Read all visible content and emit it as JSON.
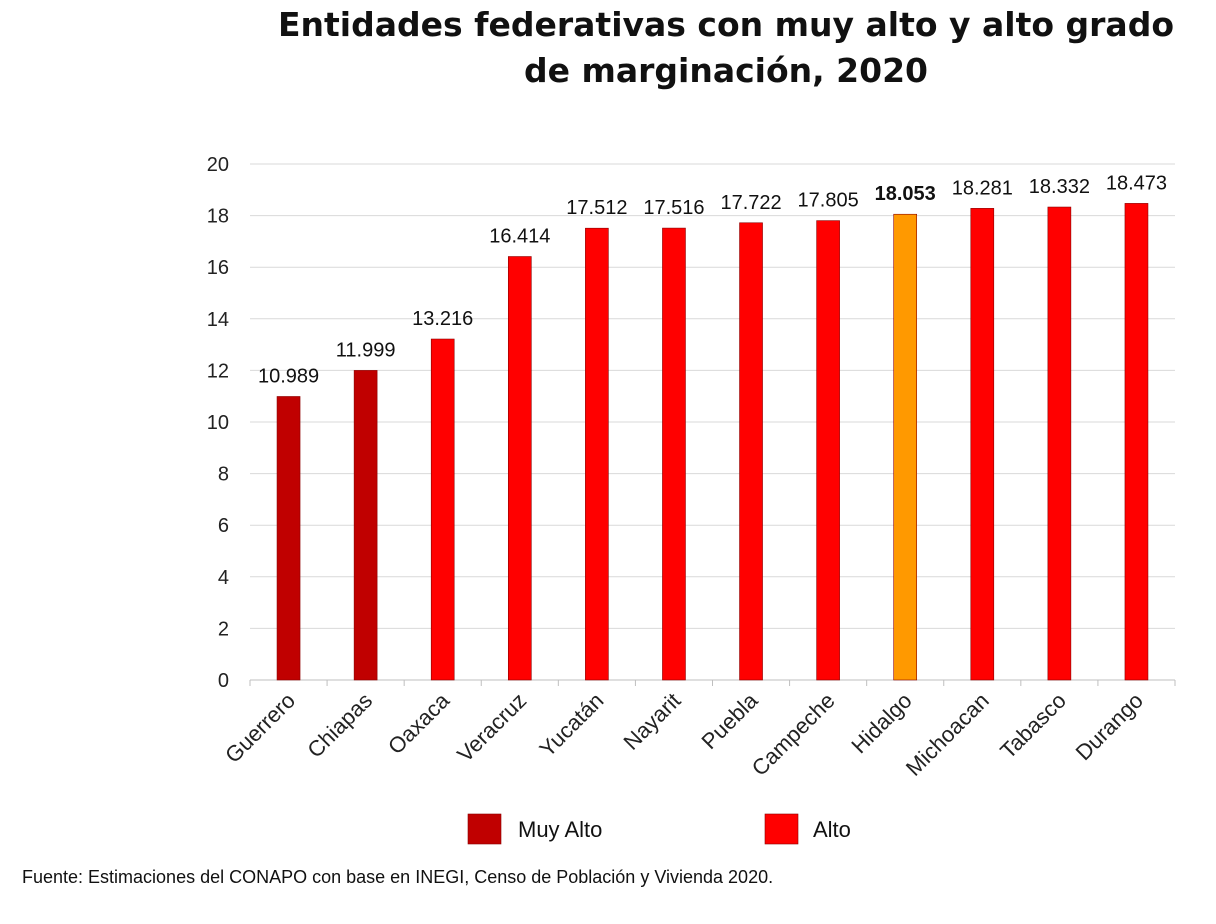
{
  "chart_data": {
    "type": "bar",
    "title": "Entidades federativas con muy alto y alto grado de marginación, 2020",
    "title_lines": [
      "Entidades federativas con muy alto y alto grado",
      "de marginación, 2020"
    ],
    "categories": [
      "Guerrero",
      "Chiapas",
      "Oaxaca",
      "Veracruz",
      "Yucatán",
      "Nayarit",
      "Puebla",
      "Campeche",
      "Hidalgo",
      "Michoacan",
      "Tabasco",
      "Durango"
    ],
    "values": [
      10.989,
      11.999,
      13.216,
      16.414,
      17.512,
      17.516,
      17.722,
      17.805,
      18.053,
      18.281,
      18.332,
      18.473
    ],
    "value_labels": [
      "10.989",
      "11.999",
      "13.216",
      "16.414",
      "17.512",
      "17.516",
      "17.722",
      "17.805",
      "18.053",
      "18.281",
      "18.332",
      "18.473"
    ],
    "groups": [
      "Muy Alto",
      "Muy Alto",
      "Alto",
      "Alto",
      "Alto",
      "Alto",
      "Alto",
      "Alto",
      "Highlight",
      "Alto",
      "Alto",
      "Alto"
    ],
    "highlight_index": 8,
    "ylim": [
      0,
      20
    ],
    "yticks": [
      0,
      2,
      4,
      6,
      8,
      10,
      12,
      14,
      16,
      18,
      20
    ],
    "xlabel": "",
    "ylabel": "",
    "grid": true,
    "legend": {
      "position": "bottom",
      "entries": [
        {
          "label": "Muy Alto",
          "color": "#C00000"
        },
        {
          "label": "Alto",
          "color": "#FF0000"
        }
      ]
    },
    "colors": {
      "Muy Alto": "#C00000",
      "Alto": "#FF0000",
      "Highlight": "#FF9900"
    }
  },
  "source_text": "Fuente: Estimaciones del CONAPO con base en INEGI, Censo de Población y Vivienda 2020."
}
